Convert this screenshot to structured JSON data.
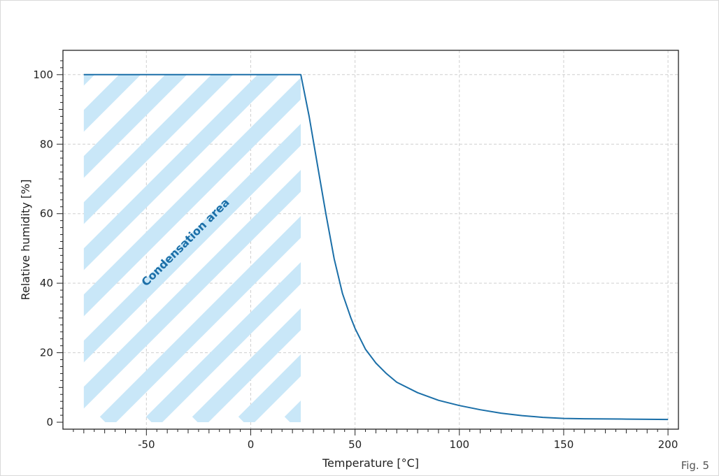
{
  "figure_label": "Fig. 5",
  "chart_data": {
    "type": "line",
    "xlabel": "Temperature [°C]",
    "ylabel": "Relative humidity [%]",
    "xlim": [
      -90,
      205
    ],
    "ylim": [
      -2,
      107
    ],
    "x_ticks": [
      -50,
      0,
      50,
      100,
      150,
      200
    ],
    "y_ticks": [
      0,
      20,
      40,
      60,
      80,
      100
    ],
    "x_tick_labels": [
      "-50",
      "0",
      "50",
      "100",
      "150",
      "200"
    ],
    "y_tick_labels": [
      "0",
      "20",
      "40",
      "60",
      "80",
      "100"
    ],
    "grid": true,
    "line_color": "#1b6fa8",
    "hatch_color": "#c9e7f8",
    "series": [
      {
        "x": [
          -80,
          24,
          28,
          32,
          36,
          40,
          44,
          48,
          50,
          55,
          60,
          65,
          70,
          80,
          90,
          100,
          110,
          120,
          130,
          140,
          150,
          160,
          180,
          200
        ],
        "y": [
          100,
          100,
          88,
          74,
          60,
          47,
          37,
          30,
          27,
          21,
          17,
          14,
          11.5,
          8.5,
          6.3,
          4.8,
          3.6,
          2.6,
          1.9,
          1.4,
          1.1,
          1.0,
          0.9,
          0.8
        ]
      }
    ],
    "annotations": [
      {
        "text": "Condensation area",
        "x": -30,
        "y": 51,
        "rotation": -45
      }
    ],
    "shaded_region": {
      "label": "Condensation area",
      "x_range": [
        -80,
        24
      ],
      "y_range": [
        0,
        100
      ],
      "pattern": "diagonal hatch"
    }
  }
}
